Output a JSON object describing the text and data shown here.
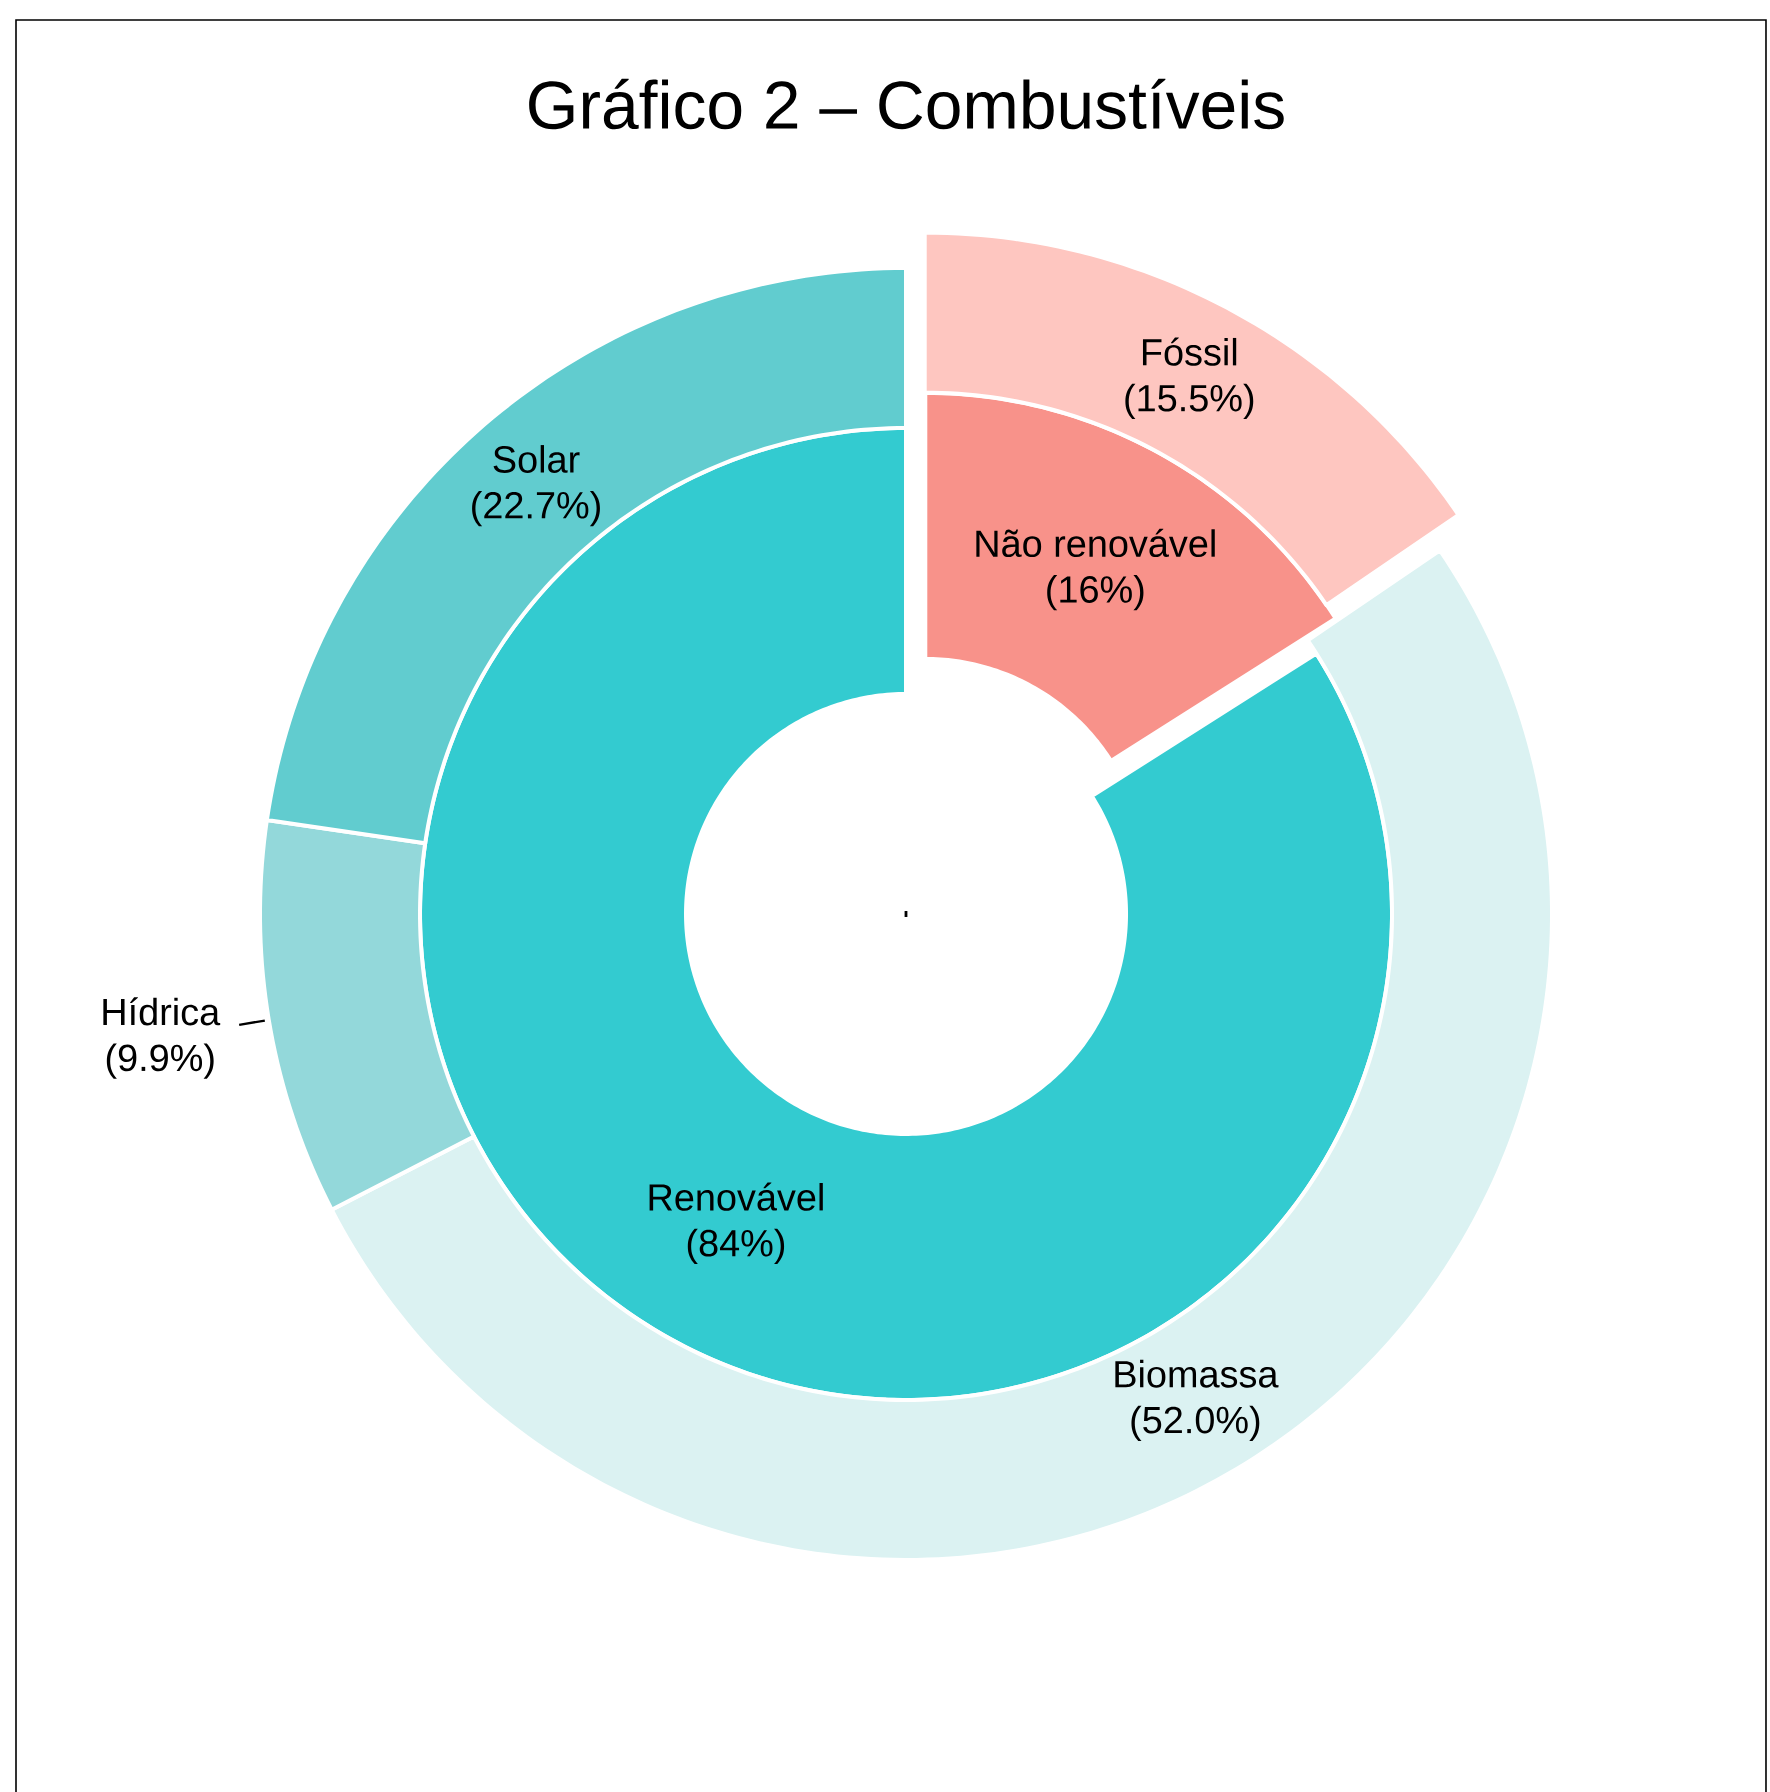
{
  "chart_data": [
    {
      "type": "donut",
      "title": "Gráfico 2 – Combustíveis",
      "categories": [
        "Não renovável",
        "Renovável"
      ],
      "values": [
        16,
        84
      ],
      "colors": [
        "#f8928a",
        "#33cbd0"
      ],
      "value_labels": [
        "(16%)",
        "(84%)"
      ]
    },
    {
      "type": "donut",
      "categories": [
        "Fóssil",
        "Biomassa",
        "Hídrica",
        "Solar"
      ],
      "values": [
        15.5,
        52.0,
        9.9,
        22.7
      ],
      "colors": [
        "#fec6c0",
        "#dbf2f2",
        "#93d8da",
        "#61cccf"
      ],
      "value_labels": [
        "(15.5%)",
        "(52.0%)",
        "(9.9%)",
        "(22.7%)"
      ]
    }
  ]
}
